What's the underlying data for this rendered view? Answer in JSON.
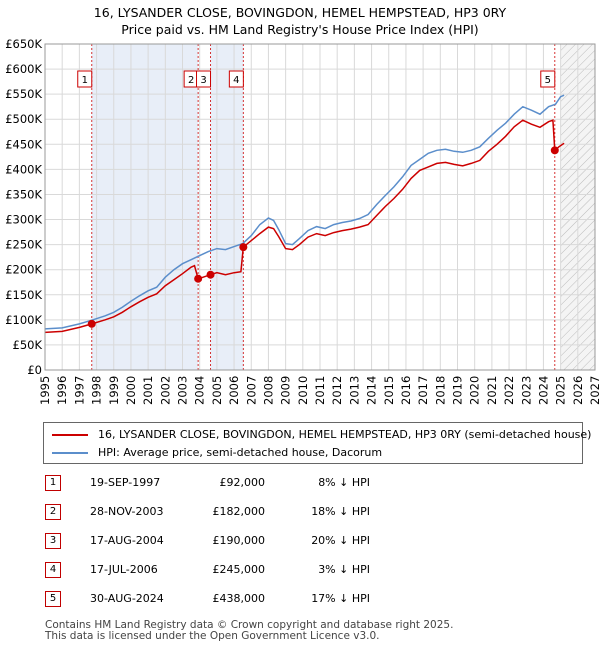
{
  "title_line1": "16, LYSANDER CLOSE, BOVINGDON, HEMEL HEMPSTEAD, HP3 0RY",
  "title_line2": "Price paid vs. HM Land Registry's House Price Index (HPI)",
  "colors": {
    "property": "#cc0000",
    "hpi": "#5b8ecb",
    "shade": "#e8eef8",
    "grid": "#d9d9d9",
    "marker_border": "#cc0000"
  },
  "legend": {
    "property_label": "16, LYSANDER CLOSE, BOVINGDON, HEMEL HEMPSTEAD, HP3 0RY (semi-detached house)",
    "hpi_label": "HPI: Average price, semi-detached house, Dacorum"
  },
  "transactions": [
    {
      "num": "1",
      "date": "19-SEP-1997",
      "price": "£92,000",
      "hpi": "8% ↓ HPI"
    },
    {
      "num": "2",
      "date": "28-NOV-2003",
      "price": "£182,000",
      "hpi": "18% ↓ HPI"
    },
    {
      "num": "3",
      "date": "17-AUG-2004",
      "price": "£190,000",
      "hpi": "20% ↓ HPI"
    },
    {
      "num": "4",
      "date": "17-JUL-2006",
      "price": "£245,000",
      "hpi": "3% ↓ HPI"
    },
    {
      "num": "5",
      "date": "30-AUG-2024",
      "price": "£438,000",
      "hpi": "17% ↓ HPI"
    }
  ],
  "footer": {
    "line1": "Contains HM Land Registry data © Crown copyright and database right 2025.",
    "line2": "This data is licensed under the Open Government Licence v3.0."
  },
  "chart_data": {
    "type": "line",
    "title": "16, LYSANDER CLOSE, BOVINGDON, HEMEL HEMPSTEAD, HP3 0RY — Price paid vs. HM Land Registry's House Price Index (HPI)",
    "xlabel": "",
    "ylabel": "",
    "xlim": [
      1995,
      2027
    ],
    "ylim": [
      0,
      650000
    ],
    "x_ticks": [
      1995,
      1996,
      1997,
      1998,
      1999,
      2000,
      2001,
      2002,
      2003,
      2004,
      2005,
      2006,
      2007,
      2008,
      2009,
      2010,
      2011,
      2012,
      2013,
      2014,
      2015,
      2016,
      2017,
      2018,
      2019,
      2020,
      2021,
      2022,
      2023,
      2024,
      2025,
      2026,
      2027
    ],
    "y_ticks": [
      0,
      50000,
      100000,
      150000,
      200000,
      250000,
      300000,
      350000,
      400000,
      450000,
      500000,
      550000,
      600000,
      650000
    ],
    "y_tick_labels": [
      "£0",
      "£50K",
      "£100K",
      "£150K",
      "£200K",
      "£250K",
      "£300K",
      "£350K",
      "£400K",
      "£450K",
      "£500K",
      "£550K",
      "£600K",
      "£650K"
    ],
    "forecast_start": 2025.0,
    "grid": true,
    "legend_position": "below",
    "series": [
      {
        "name": "HPI: Average price, semi-detached house, Dacorum",
        "points": [
          [
            1995.0,
            82000
          ],
          [
            1996.0,
            84000
          ],
          [
            1997.0,
            92000
          ],
          [
            1997.7,
            99000
          ],
          [
            1998.5,
            108000
          ],
          [
            1999.0,
            115000
          ],
          [
            1999.5,
            125000
          ],
          [
            2000.0,
            137000
          ],
          [
            2000.5,
            148000
          ],
          [
            2001.0,
            158000
          ],
          [
            2001.5,
            165000
          ],
          [
            2002.0,
            185000
          ],
          [
            2002.5,
            200000
          ],
          [
            2003.0,
            212000
          ],
          [
            2003.5,
            220000
          ],
          [
            2004.0,
            228000
          ],
          [
            2004.5,
            236000
          ],
          [
            2005.0,
            242000
          ],
          [
            2005.5,
            240000
          ],
          [
            2006.0,
            246000
          ],
          [
            2006.5,
            252000
          ],
          [
            2007.0,
            268000
          ],
          [
            2007.5,
            290000
          ],
          [
            2008.0,
            303000
          ],
          [
            2008.3,
            298000
          ],
          [
            2008.6,
            280000
          ],
          [
            2009.0,
            252000
          ],
          [
            2009.4,
            250000
          ],
          [
            2009.8,
            262000
          ],
          [
            2010.3,
            278000
          ],
          [
            2010.8,
            286000
          ],
          [
            2011.3,
            282000
          ],
          [
            2011.8,
            290000
          ],
          [
            2012.3,
            294000
          ],
          [
            2012.8,
            297000
          ],
          [
            2013.3,
            302000
          ],
          [
            2013.8,
            310000
          ],
          [
            2014.3,
            330000
          ],
          [
            2014.8,
            348000
          ],
          [
            2015.3,
            365000
          ],
          [
            2015.8,
            385000
          ],
          [
            2016.3,
            408000
          ],
          [
            2016.8,
            420000
          ],
          [
            2017.3,
            432000
          ],
          [
            2017.8,
            438000
          ],
          [
            2018.3,
            440000
          ],
          [
            2018.8,
            436000
          ],
          [
            2019.3,
            434000
          ],
          [
            2019.8,
            438000
          ],
          [
            2020.3,
            445000
          ],
          [
            2020.8,
            462000
          ],
          [
            2021.3,
            478000
          ],
          [
            2021.8,
            492000
          ],
          [
            2022.3,
            510000
          ],
          [
            2022.8,
            525000
          ],
          [
            2023.3,
            518000
          ],
          [
            2023.8,
            510000
          ],
          [
            2024.3,
            525000
          ],
          [
            2024.7,
            530000
          ],
          [
            2025.0,
            545000
          ],
          [
            2025.2,
            548000
          ]
        ]
      },
      {
        "name": "16, LYSANDER CLOSE, BOVINGDON, HEMEL HEMPSTEAD, HP3 0RY (semi-detached house)",
        "points": [
          [
            1995.0,
            75000
          ],
          [
            1996.0,
            77000
          ],
          [
            1997.0,
            85000
          ],
          [
            1997.72,
            92000
          ],
          [
            1998.5,
            100000
          ],
          [
            1999.0,
            106000
          ],
          [
            1999.5,
            115000
          ],
          [
            2000.0,
            126000
          ],
          [
            2000.5,
            136000
          ],
          [
            2001.0,
            145000
          ],
          [
            2001.5,
            152000
          ],
          [
            2002.0,
            168000
          ],
          [
            2002.5,
            180000
          ],
          [
            2003.0,
            192000
          ],
          [
            2003.5,
            205000
          ],
          [
            2003.7,
            208000
          ],
          [
            2003.91,
            182000
          ],
          [
            2004.2,
            185000
          ],
          [
            2004.63,
            190000
          ],
          [
            2005.0,
            194000
          ],
          [
            2005.5,
            190000
          ],
          [
            2006.0,
            194000
          ],
          [
            2006.4,
            196000
          ],
          [
            2006.54,
            245000
          ],
          [
            2007.0,
            258000
          ],
          [
            2007.5,
            272000
          ],
          [
            2008.0,
            285000
          ],
          [
            2008.3,
            282000
          ],
          [
            2008.6,
            266000
          ],
          [
            2009.0,
            242000
          ],
          [
            2009.4,
            240000
          ],
          [
            2009.8,
            250000
          ],
          [
            2010.3,
            265000
          ],
          [
            2010.8,
            272000
          ],
          [
            2011.3,
            268000
          ],
          [
            2011.8,
            274000
          ],
          [
            2012.3,
            278000
          ],
          [
            2012.8,
            281000
          ],
          [
            2013.3,
            285000
          ],
          [
            2013.8,
            290000
          ],
          [
            2014.3,
            308000
          ],
          [
            2014.8,
            326000
          ],
          [
            2015.3,
            342000
          ],
          [
            2015.8,
            360000
          ],
          [
            2016.3,
            382000
          ],
          [
            2016.8,
            398000
          ],
          [
            2017.3,
            405000
          ],
          [
            2017.8,
            412000
          ],
          [
            2018.3,
            414000
          ],
          [
            2018.8,
            410000
          ],
          [
            2019.3,
            407000
          ],
          [
            2019.8,
            412000
          ],
          [
            2020.3,
            418000
          ],
          [
            2020.8,
            436000
          ],
          [
            2021.3,
            450000
          ],
          [
            2021.8,
            466000
          ],
          [
            2022.3,
            485000
          ],
          [
            2022.8,
            498000
          ],
          [
            2023.3,
            490000
          ],
          [
            2023.8,
            484000
          ],
          [
            2024.3,
            495000
          ],
          [
            2024.55,
            498000
          ],
          [
            2024.66,
            438000
          ],
          [
            2024.9,
            445000
          ],
          [
            2025.2,
            452000
          ]
        ]
      }
    ],
    "sales": [
      {
        "label": "1",
        "x": 1997.72,
        "y": 92000
      },
      {
        "label": "2",
        "x": 2003.91,
        "y": 182000
      },
      {
        "label": "3",
        "x": 2004.63,
        "y": 190000
      },
      {
        "label": "4",
        "x": 2006.54,
        "y": 245000
      },
      {
        "label": "5",
        "x": 2024.66,
        "y": 438000
      }
    ]
  }
}
